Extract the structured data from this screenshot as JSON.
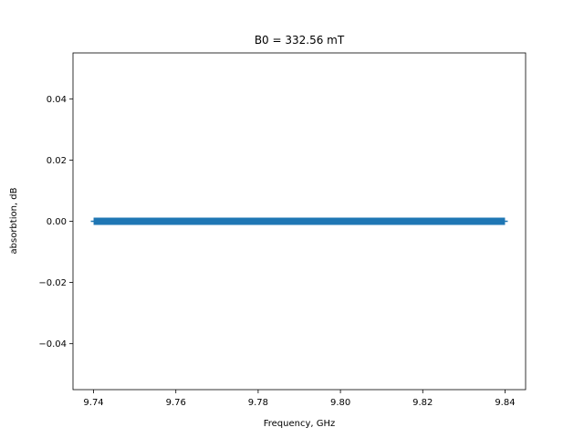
{
  "chart_data": {
    "type": "scatter",
    "title": "B0 = 332.56 mT",
    "xlabel": "Frequency, GHz",
    "ylabel": "absorbtion, dB",
    "xlim": [
      9.735,
      9.845
    ],
    "ylim": [
      -0.055,
      0.055
    ],
    "x_ticks": [
      9.74,
      9.76,
      9.78,
      9.8,
      9.82,
      9.84
    ],
    "x_tick_labels": [
      "9.74",
      "9.76",
      "9.78",
      "9.80",
      "9.82",
      "9.84"
    ],
    "y_ticks": [
      -0.04,
      -0.02,
      0.0,
      0.02,
      0.04
    ],
    "y_tick_labels": [
      "−0.04",
      "−0.02",
      "0.00",
      "0.02",
      "0.04"
    ],
    "grid": false,
    "series": [
      {
        "color": "#1f77b4",
        "x_start": 9.74,
        "x_end": 9.84,
        "y_value": 0.0
      }
    ]
  }
}
